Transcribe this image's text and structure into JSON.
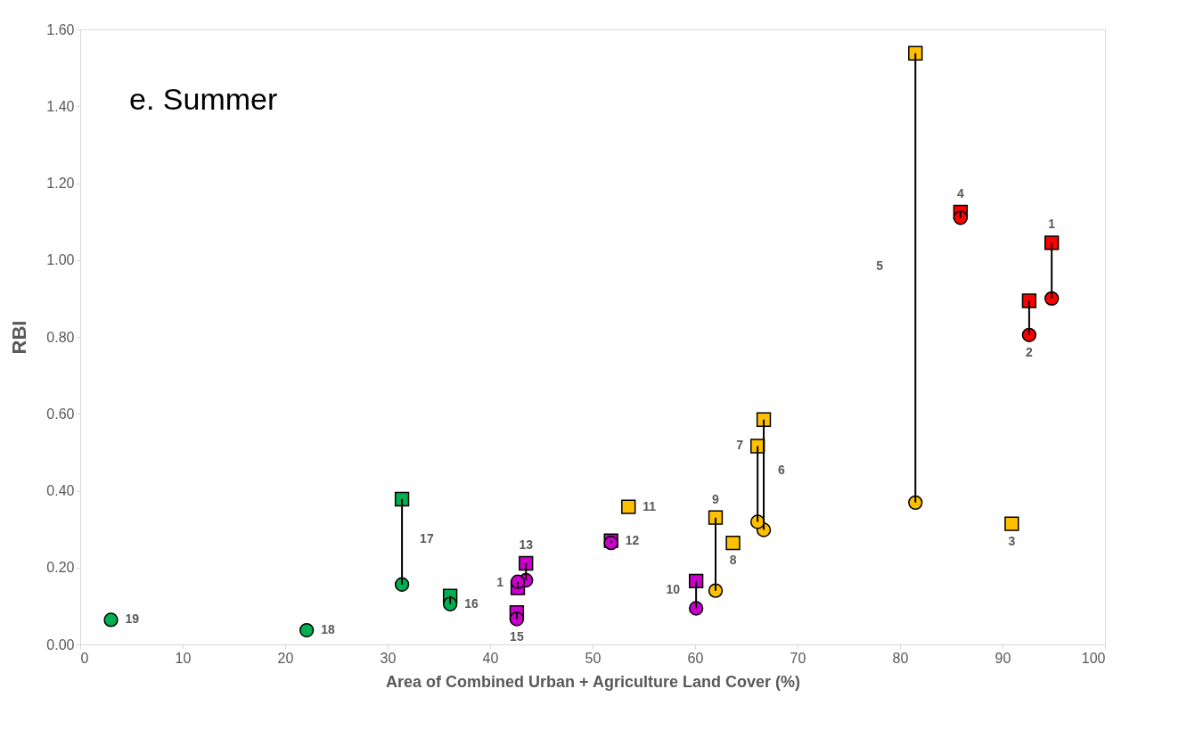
{
  "chart_data": {
    "type": "scatter",
    "title": "e. Summer",
    "xlabel": "Area of Combined Urban + Agriculture Land Cover (%)",
    "ylabel": "RBI",
    "xlim": [
      0,
      100
    ],
    "xticks": [
      0,
      10,
      20,
      30,
      40,
      50,
      60,
      70,
      80,
      90,
      100
    ],
    "ylim": [
      0,
      1.6
    ],
    "yticks": [
      {
        "value": 0,
        "label": "0.00"
      },
      {
        "value": 0.2,
        "label": "0.20"
      },
      {
        "value": 0.4,
        "label": "0.40"
      },
      {
        "value": 0.6,
        "label": "0.60"
      },
      {
        "value": 0.8,
        "label": "0.80"
      },
      {
        "value": 1.0,
        "label": "1.00"
      },
      {
        "value": 1.2,
        "label": "1.20"
      },
      {
        "value": 1.4,
        "label": "1.40"
      },
      {
        "value": 1.6,
        "label": "1.60"
      }
    ],
    "grid": false,
    "annotations": [
      "1",
      "2",
      "4",
      "5",
      "3",
      "6",
      "7",
      "9",
      "8",
      "11",
      "12",
      "10",
      "13",
      "1",
      "15",
      "16",
      "17",
      "18",
      "19"
    ],
    "series": [
      {
        "color": "#00b050",
        "marker": "square",
        "x": [
          36.1,
          31.4
        ],
        "values": [
          0.126,
          0.378
        ],
        "errors": [
          [
            0.105,
            0.126
          ],
          [
            0.156,
            0.378
          ]
        ]
      },
      {
        "color": "#00b050",
        "marker": "circle",
        "x": [
          36.1,
          31.4,
          22.1,
          3.0
        ],
        "values": [
          0.105,
          0.156,
          0.037,
          0.064
        ]
      },
      {
        "color": "#cc00cc",
        "marker": "square",
        "x": [
          51.8,
          60.1,
          43.5,
          42.7,
          42.6
        ],
        "values": [
          0.27,
          0.165,
          0.211,
          0.147,
          0.083
        ],
        "errors": [
          [
            0.264,
            0.27
          ],
          [
            0.094,
            0.165
          ],
          [
            0.167,
            0.211
          ],
          [
            0.147,
            0.163
          ],
          [
            0.066,
            0.083
          ]
        ]
      },
      {
        "color": "#cc00cc",
        "marker": "circle",
        "x": [
          51.8,
          60.1,
          43.5,
          42.7,
          42.6
        ],
        "values": [
          0.264,
          0.094,
          0.167,
          0.163,
          0.066
        ]
      },
      {
        "color": "#ffc000",
        "marker": "square",
        "x": [
          90.9,
          81.5,
          66.7,
          66.1,
          62.0,
          63.7,
          53.5
        ],
        "values": [
          0.314,
          1.538,
          0.585,
          0.516,
          0.33,
          0.264,
          0.358
        ],
        "errors": [
          null,
          [
            0.369,
            1.538
          ],
          [
            0.298,
            0.585
          ],
          [
            0.319,
            0.516
          ],
          [
            0.14,
            0.33
          ],
          null,
          null
        ]
      },
      {
        "color": "#ffc000",
        "marker": "circle",
        "x": [
          81.5,
          66.7,
          66.1,
          62.0
        ],
        "values": [
          0.369,
          0.298,
          0.319,
          0.14
        ]
      },
      {
        "color": "#ff0000",
        "marker": "square",
        "x": [
          94.8,
          92.6,
          85.9
        ],
        "values": [
          1.045,
          0.894,
          1.125
        ],
        "errors": [
          [
            0.9,
            1.045
          ],
          [
            0.805,
            0.894
          ],
          [
            1.11,
            1.125
          ]
        ]
      },
      {
        "color": "#ff0000",
        "marker": "circle",
        "x": [
          94.8,
          92.6,
          85.9
        ],
        "values": [
          0.9,
          0.805,
          1.11
        ]
      }
    ]
  }
}
